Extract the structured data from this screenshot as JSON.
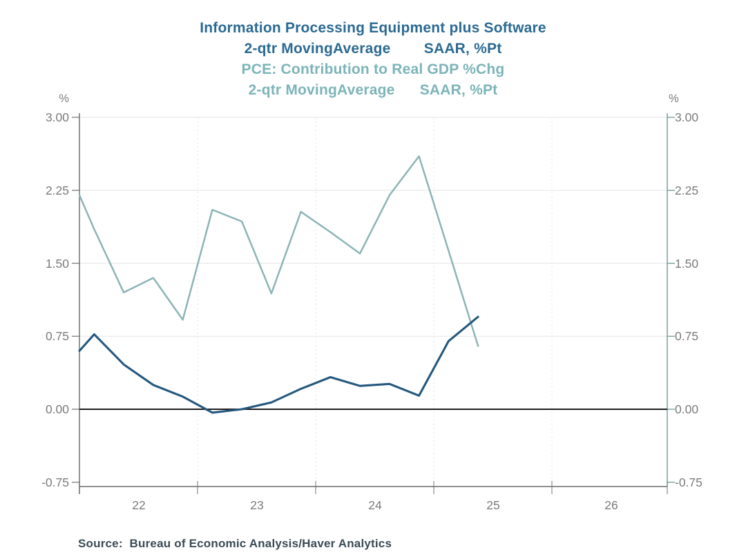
{
  "source": {
    "label": "Source:  Bureau of Economic Analysis/Haver Analytics"
  },
  "chart_data": {
    "type": "line",
    "title_series1": "Information Processing Equipment plus Software",
    "subtitle_series1": "2-qtr MovingAverage        SAAR, %Pt",
    "title_series2": "PCE: Contribution to Real GDP %Chg",
    "subtitle_series2": "2-qtr MovingAverage      SAAR, %Pt",
    "unit_left": "%",
    "unit_right": "%",
    "ylim": [
      -0.79,
      3.0
    ],
    "xlim": [
      2022.0,
      2026.98
    ],
    "grid": true,
    "legend_position": "title-colors",
    "y_ticks": [
      "3.00",
      "2.25",
      "1.50",
      "0.75",
      "0.00",
      "-0.75"
    ],
    "y_tick_values": [
      3.0,
      2.25,
      1.5,
      0.75,
      0.0,
      -0.75
    ],
    "y_gridline_values": [
      3.0,
      2.25,
      1.5,
      0.75
    ],
    "x_ticks": [
      "22",
      "23",
      "24",
      "25",
      "26"
    ],
    "x_tick_boundary_years": [
      2022,
      2023,
      2024,
      2025,
      2026,
      2026.98
    ],
    "x_gridline_years": [
      2023,
      2024,
      2025,
      2026
    ],
    "zero_line": true,
    "x_quarters": [
      "plot-edge",
      "22Q1",
      "22Q2",
      "22Q3",
      "22Q4",
      "23Q1",
      "23Q2",
      "23Q3",
      "23Q4",
      "24Q1",
      "24Q2",
      "24Q3",
      "24Q4",
      "25Q1",
      "25Q2"
    ],
    "x": [
      2022.0,
      2022.125,
      2022.375,
      2022.625,
      2022.875,
      2023.125,
      2023.375,
      2023.625,
      2023.875,
      2024.125,
      2024.375,
      2024.625,
      2024.875,
      2025.125,
      2025.375
    ],
    "series": [
      {
        "name": "Information Processing Equipment plus Software (2-qtr MA, SAAR, %Pt)",
        "color": "#24587e",
        "stroke_width": 3.1,
        "values": [
          0.6,
          0.77,
          0.46,
          0.25,
          0.13,
          -0.035,
          0.0,
          0.07,
          0.21,
          0.33,
          0.24,
          0.26,
          0.14,
          0.7,
          0.95
        ]
      },
      {
        "name": "PCE: Contribution to Real GDP %Chg (2-qtr MA, SAAR, %Pt)",
        "color": "#8cb4b6",
        "stroke_width": 2.5,
        "values": [
          2.2,
          1.85,
          1.2,
          1.35,
          0.92,
          2.05,
          1.93,
          1.19,
          2.03,
          1.82,
          1.6,
          2.2,
          2.6,
          1.63,
          0.65
        ]
      }
    ]
  }
}
